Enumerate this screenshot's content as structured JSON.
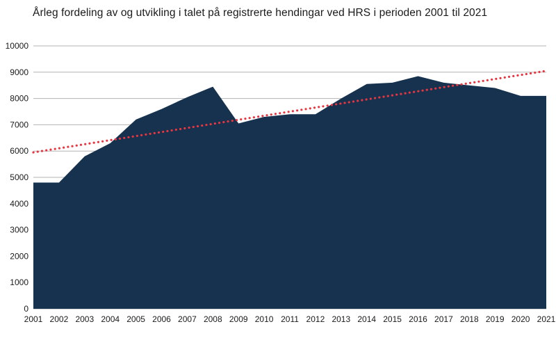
{
  "title": "Årleg fordeling av og utvikling i talet på registrerte hendingar ved HRS i perioden 2001 til 2021",
  "chart_data": {
    "type": "area",
    "title": "Årleg fordeling av og utvikling i talet på registrerte hendingar ved HRS i perioden 2001 til 2021",
    "categories": [
      2001,
      2002,
      2003,
      2004,
      2005,
      2006,
      2007,
      2008,
      2009,
      2010,
      2011,
      2012,
      2013,
      2014,
      2015,
      2016,
      2017,
      2018,
      2019,
      2020,
      2021
    ],
    "series": [
      {
        "name": "Registrerte hendingar",
        "type": "area",
        "color": "#16324f",
        "values": [
          4800,
          4800,
          5800,
          6300,
          7200,
          7600,
          8050,
          8450,
          7050,
          7300,
          7400,
          7400,
          8000,
          8550,
          8600,
          8850,
          8600,
          8500,
          8400,
          8100,
          8100
        ]
      },
      {
        "name": "Trendlinje",
        "type": "dotted-line",
        "color": "#e8353f",
        "start": 5950,
        "end": 9050
      }
    ],
    "xlabel": "",
    "ylabel": "",
    "ylim": [
      0,
      10000
    ],
    "ytick_interval": 1000,
    "grid": true,
    "legend_position": "none",
    "gridline_color": "#b3b3b3",
    "background_color": "#ffffff"
  }
}
